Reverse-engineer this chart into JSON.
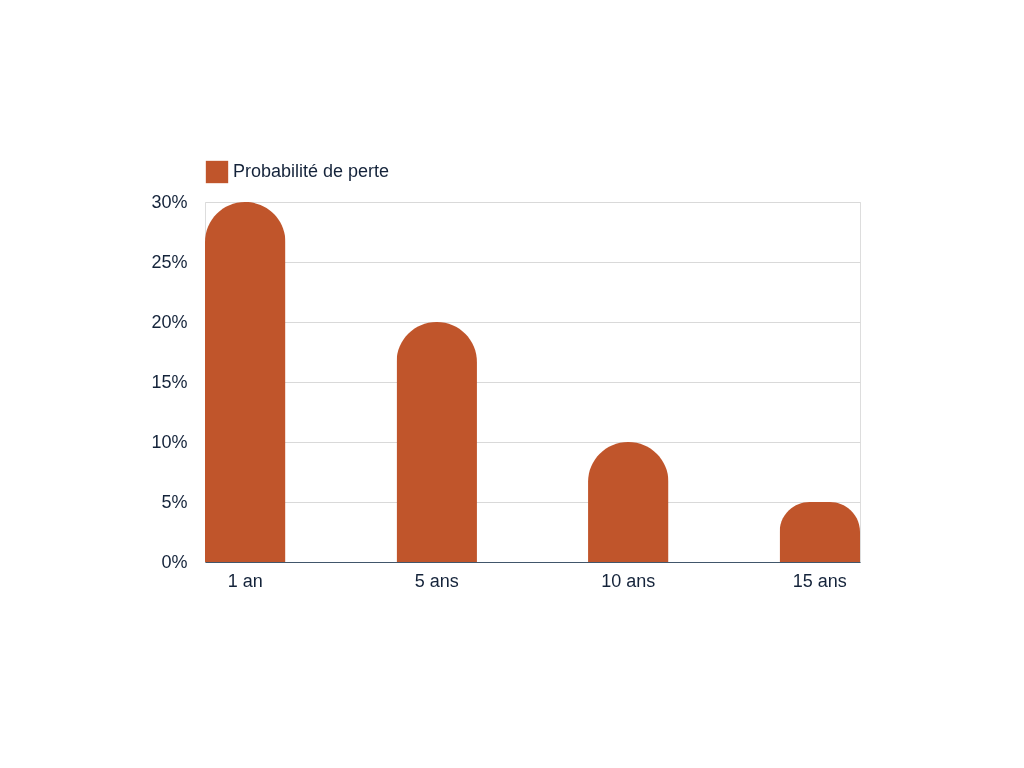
{
  "chart_data": {
    "type": "bar",
    "categories": [
      "1 an",
      "5 ans",
      "10 ans",
      "15 ans"
    ],
    "series": [
      {
        "name": "Probabilité de perte",
        "color": "#c0552b",
        "values": [
          30,
          20,
          10,
          5
        ]
      }
    ],
    "ylim": [
      0,
      30
    ],
    "yticks": [
      {
        "value": 0,
        "label": "0%"
      },
      {
        "value": 5,
        "label": "5%"
      },
      {
        "value": 10,
        "label": "10%"
      },
      {
        "value": 15,
        "label": "15%"
      },
      {
        "value": 20,
        "label": "20%"
      },
      {
        "value": 25,
        "label": "25%"
      },
      {
        "value": 30,
        "label": "30%"
      }
    ],
    "grid": "y",
    "legend": "top"
  }
}
